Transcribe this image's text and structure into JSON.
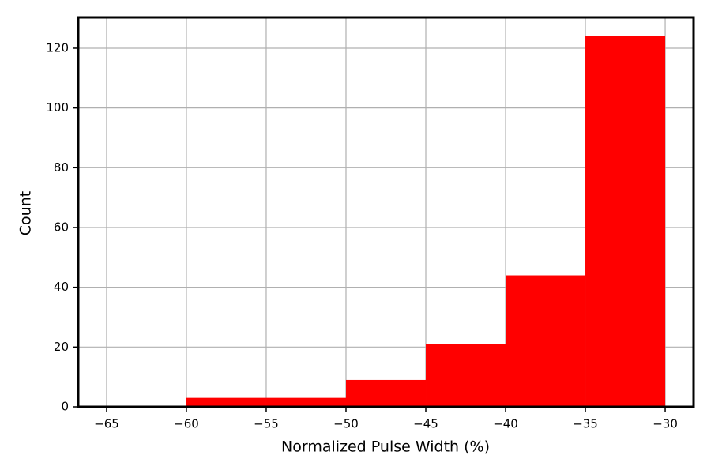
{
  "chart_data": {
    "type": "histogram",
    "xlabel": "Normalized Pulse Width (%)",
    "ylabel": "Count",
    "bins": [
      -60,
      -55,
      -50,
      -45,
      -40,
      -35,
      -30
    ],
    "values": [
      3,
      3,
      9,
      21,
      44,
      124
    ],
    "color": "#ff0000",
    "xlim": [
      -66.78,
      -28.22
    ],
    "ylim": [
      0,
      130.3
    ],
    "xticks": [
      {
        "value": -65,
        "label": "−65"
      },
      {
        "value": -60,
        "label": "−60"
      },
      {
        "value": -55,
        "label": "−55"
      },
      {
        "value": -50,
        "label": "−50"
      },
      {
        "value": -45,
        "label": "−45"
      },
      {
        "value": -40,
        "label": "−40"
      },
      {
        "value": -35,
        "label": "−35"
      },
      {
        "value": -30,
        "label": "−30"
      }
    ],
    "yticks": [
      0,
      20,
      40,
      60,
      80,
      100,
      120
    ],
    "grid": true
  }
}
